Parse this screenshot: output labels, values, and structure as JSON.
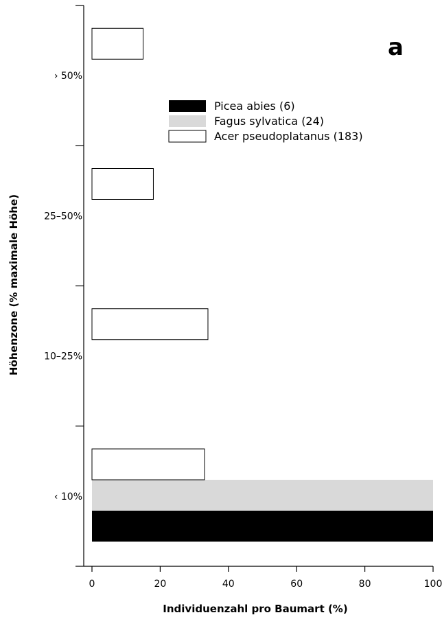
{
  "chart_data": {
    "type": "bar",
    "orientation": "horizontal",
    "panel_label": "a",
    "xlabel": "Individuenzahl pro Baumart (%)",
    "ylabel": "Höhenzone (% maximale Höhe)",
    "xlim": [
      0,
      100
    ],
    "xticks": [
      "0",
      "20",
      "40",
      "60",
      "80",
      "100"
    ],
    "categories": [
      "‹ 10%",
      "10–25%",
      "25–50%",
      "› 50%"
    ],
    "series": [
      {
        "name": "Picea abies (6)",
        "color": "#000000",
        "values": [
          100,
          0,
          0,
          0
        ]
      },
      {
        "name": "Fagus sylvatica (24)",
        "color": "#d9d9d9",
        "values": [
          100,
          0,
          0,
          0
        ]
      },
      {
        "name": "Acer pseudoplatanus (183)",
        "color": "#ffffff",
        "values": [
          33,
          34,
          18,
          15
        ]
      }
    ],
    "legend_position": "top-right",
    "grid": false
  }
}
